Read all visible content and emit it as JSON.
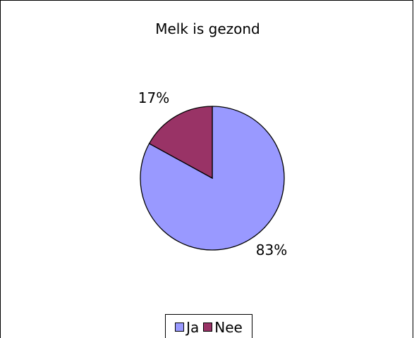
{
  "chart_data": {
    "type": "pie",
    "title": "Melk is gezond",
    "categories": [
      "Ja",
      "Nee"
    ],
    "values": [
      83,
      17
    ],
    "labels": [
      "83%",
      "17%"
    ],
    "colors": [
      "#9999FF",
      "#993366"
    ],
    "legend_position": "bottom",
    "start_angle_deg": 0,
    "direction": "clockwise"
  }
}
